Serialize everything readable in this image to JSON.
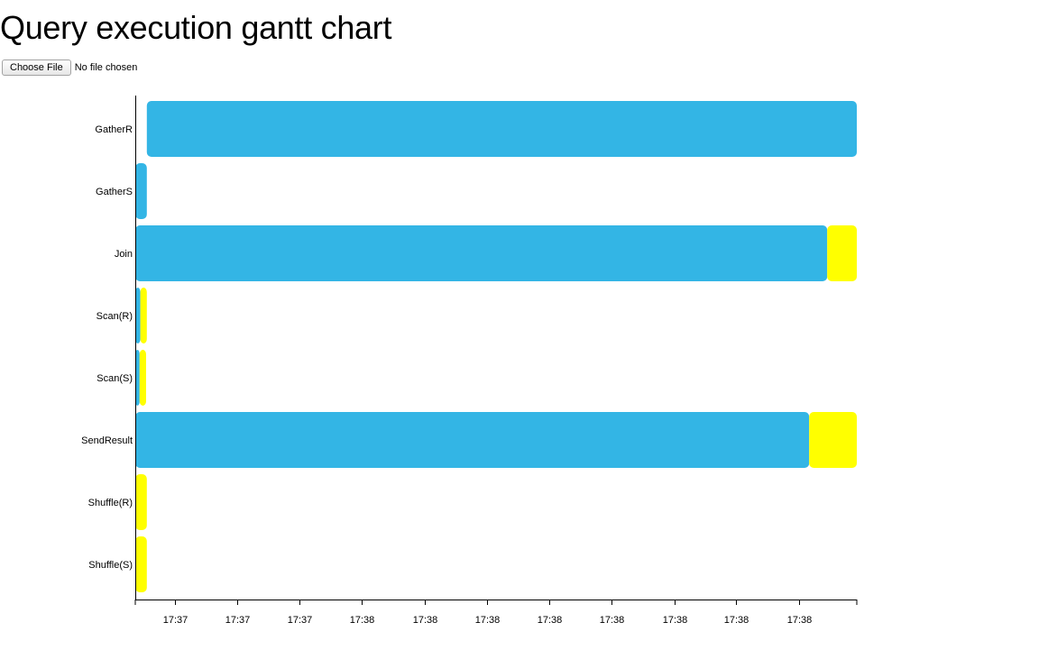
{
  "page": {
    "title": "Query execution gantt chart"
  },
  "file_input": {
    "button_label": "Choose File",
    "status": "No file chosen"
  },
  "colors": {
    "running": "#33b5e5",
    "waiting": "#ffff00",
    "axis": "#000000"
  },
  "chart_data": {
    "type": "gantt",
    "title": "",
    "xlabel": "",
    "ylabel": "",
    "xlim": [
      0,
      1.0
    ],
    "categories": [
      "GatherR",
      "GatherS",
      "Join",
      "Scan(R)",
      "Scan(S)",
      "SendResult",
      "Shuffle(R)",
      "Shuffle(S)"
    ],
    "tick_values": [
      0.055,
      0.141,
      0.228,
      0.314,
      0.401,
      0.487,
      0.574,
      0.66,
      0.747,
      0.833,
      0.92
    ],
    "tick_labels": [
      "17:37",
      "17:37",
      "17:37",
      "17:38",
      "17:38",
      "17:38",
      "17:38",
      "17:38",
      "17:38",
      "17:38",
      "17:38"
    ],
    "tasks": [
      {
        "category": "GatherR",
        "state": "running",
        "start": 0.016,
        "end": 1.0
      },
      {
        "category": "GatherS",
        "state": "running",
        "start": 0.0,
        "end": 0.016
      },
      {
        "category": "Join",
        "state": "running",
        "start": 0.0,
        "end": 0.959
      },
      {
        "category": "Join",
        "state": "waiting",
        "start": 0.959,
        "end": 1.0
      },
      {
        "category": "Scan(R)",
        "state": "running",
        "start": 0.0,
        "end": 0.007
      },
      {
        "category": "Scan(R)",
        "state": "waiting",
        "start": 0.007,
        "end": 0.016
      },
      {
        "category": "Scan(S)",
        "state": "running",
        "start": 0.0,
        "end": 0.006
      },
      {
        "category": "Scan(S)",
        "state": "waiting",
        "start": 0.006,
        "end": 0.015
      },
      {
        "category": "SendResult",
        "state": "running",
        "start": 0.0,
        "end": 0.934
      },
      {
        "category": "SendResult",
        "state": "waiting",
        "start": 0.934,
        "end": 1.0
      },
      {
        "category": "Shuffle(R)",
        "state": "waiting",
        "start": 0.0,
        "end": 0.016
      },
      {
        "category": "Shuffle(S)",
        "state": "waiting",
        "start": 0.0,
        "end": 0.016
      }
    ]
  }
}
